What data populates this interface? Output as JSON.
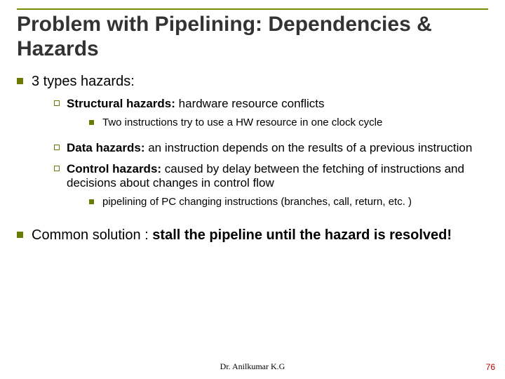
{
  "colors": {
    "rule": "#7a8a00",
    "title": "#333333",
    "body": "#000000",
    "bullet_solid": "#6b7a00",
    "bullet_open_border": "#6b7a00",
    "footer": "#000000",
    "page_number": "#b00000"
  },
  "fonts": {
    "title_size": 30,
    "lvl1_size": 20,
    "lvl2_size": 17,
    "lvl3_size": 15,
    "footer_size": 12,
    "page_size": 12
  },
  "bullets": {
    "solid_lvl1": 9,
    "open_lvl2": 8,
    "solid_lvl3": 7
  },
  "title": "Problem with Pipelining: Dependencies & Hazards",
  "content": {
    "item1": "3 types hazards:",
    "item1a_pre": "Structural hazards: ",
    "item1a_post": "hardware resource conflicts",
    "item1a_i": "Two instructions try to use a HW resource in one clock cycle",
    "item1b_pre": "Data hazards: ",
    "item1b_post": "an instruction depends on the results of a previous instruction",
    "item1c_pre": "Control hazards: ",
    "item1c_post": "caused by delay between the fetching of instructions and decisions about changes in control flow",
    "item1c_i": "pipelining of PC changing instructions (branches, call, return, etc. )",
    "item2_pre": "Common solution : ",
    "item2_post": "stall the pipeline until the hazard is resolved!"
  },
  "footer": {
    "author": "Dr. Anilkumar K.G",
    "page": "76"
  }
}
